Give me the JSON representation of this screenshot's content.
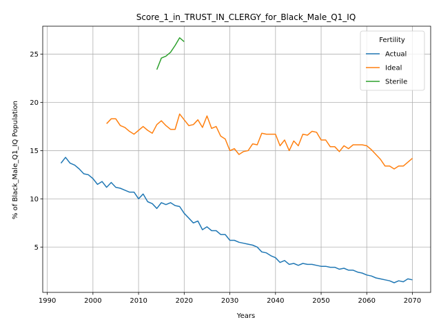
{
  "chart_data": {
    "type": "line",
    "title": "Score_1_in_TRUST_IN_CLERGY_for_Black_Male_Q1_IQ",
    "xlabel": "Years",
    "ylabel": "% of Black_Male_Q1_IQ Population",
    "xlim": [
      1989,
      2074
    ],
    "ylim": [
      0.3,
      27.9
    ],
    "xticks": [
      1990,
      2000,
      2010,
      2020,
      2030,
      2040,
      2050,
      2060,
      2070
    ],
    "yticks": [
      5,
      10,
      15,
      20,
      25
    ],
    "grid": true,
    "legend": {
      "title": "Fertility",
      "placement": "top-right"
    },
    "series": [
      {
        "name": "Actual",
        "color": "#1f77b4",
        "x": [
          1993,
          1994,
          1995,
          1996,
          1997,
          1998,
          1999,
          2000,
          2001,
          2002,
          2003,
          2004,
          2005,
          2006,
          2007,
          2008,
          2009,
          2010,
          2011,
          2012,
          2013,
          2014,
          2015,
          2016,
          2017,
          2018,
          2019,
          2020,
          2021,
          2022,
          2023,
          2024,
          2025,
          2026,
          2027,
          2028,
          2029,
          2030,
          2031,
          2032,
          2033,
          2034,
          2035,
          2036,
          2037,
          2038,
          2039,
          2040,
          2041,
          2042,
          2043,
          2044,
          2045,
          2046,
          2047,
          2048,
          2049,
          2050,
          2051,
          2052,
          2053,
          2054,
          2055,
          2056,
          2057,
          2058,
          2059,
          2060,
          2061,
          2062,
          2063,
          2064,
          2065,
          2066,
          2067,
          2068,
          2069,
          2070
        ],
        "y": [
          13.7,
          14.3,
          13.7,
          13.5,
          13.1,
          12.6,
          12.5,
          12.1,
          11.5,
          11.8,
          11.2,
          11.7,
          11.2,
          11.1,
          10.9,
          10.7,
          10.7,
          10.0,
          10.5,
          9.7,
          9.5,
          9.0,
          9.6,
          9.4,
          9.6,
          9.3,
          9.2,
          8.5,
          8.0,
          7.5,
          7.7,
          6.8,
          7.1,
          6.7,
          6.7,
          6.3,
          6.3,
          5.7,
          5.7,
          5.5,
          5.4,
          5.3,
          5.2,
          5.0,
          4.5,
          4.4,
          4.1,
          3.9,
          3.4,
          3.6,
          3.2,
          3.3,
          3.1,
          3.3,
          3.2,
          3.2,
          3.1,
          3.0,
          3.0,
          2.9,
          2.9,
          2.7,
          2.8,
          2.6,
          2.6,
          2.4,
          2.3,
          2.1,
          2.0,
          1.8,
          1.7,
          1.6,
          1.5,
          1.3,
          1.5,
          1.4,
          1.7,
          1.6
        ]
      },
      {
        "name": "Ideal",
        "color": "#ff7f0e",
        "x": [
          2003,
          2004,
          2005,
          2006,
          2007,
          2008,
          2009,
          2010,
          2011,
          2012,
          2013,
          2014,
          2015,
          2016,
          2017,
          2018,
          2019,
          2020,
          2021,
          2022,
          2023,
          2024,
          2025,
          2026,
          2027,
          2028,
          2029,
          2030,
          2031,
          2032,
          2033,
          2034,
          2035,
          2036,
          2037,
          2038,
          2039,
          2040,
          2041,
          2042,
          2043,
          2044,
          2045,
          2046,
          2047,
          2048,
          2049,
          2050,
          2051,
          2052,
          2053,
          2054,
          2055,
          2056,
          2057,
          2058,
          2059,
          2060,
          2061,
          2062,
          2063,
          2064,
          2065,
          2066,
          2067,
          2068,
          2069,
          2070
        ],
        "y": [
          17.8,
          18.3,
          18.3,
          17.6,
          17.4,
          17.0,
          16.7,
          17.1,
          17.5,
          17.1,
          16.8,
          17.7,
          18.1,
          17.6,
          17.2,
          17.2,
          18.8,
          18.2,
          17.6,
          17.7,
          18.2,
          17.4,
          18.6,
          17.3,
          17.5,
          16.5,
          16.2,
          15.0,
          15.2,
          14.6,
          14.9,
          15.0,
          15.7,
          15.6,
          16.8,
          16.7,
          16.7,
          16.7,
          15.5,
          16.1,
          15.0,
          16.0,
          15.5,
          16.7,
          16.6,
          17.0,
          16.9,
          16.1,
          16.1,
          15.4,
          15.4,
          14.9,
          15.5,
          15.2,
          15.6,
          15.6,
          15.6,
          15.5,
          15.1,
          14.6,
          14.1,
          13.4,
          13.4,
          13.1,
          13.4,
          13.4,
          13.8,
          14.2
        ]
      },
      {
        "name": "Sterile",
        "color": "#2ca02c",
        "x": [
          2014,
          2015,
          2016,
          2017,
          2018,
          2019,
          2020
        ],
        "y": [
          23.4,
          24.6,
          24.8,
          25.2,
          25.9,
          26.7,
          26.3
        ]
      }
    ]
  }
}
